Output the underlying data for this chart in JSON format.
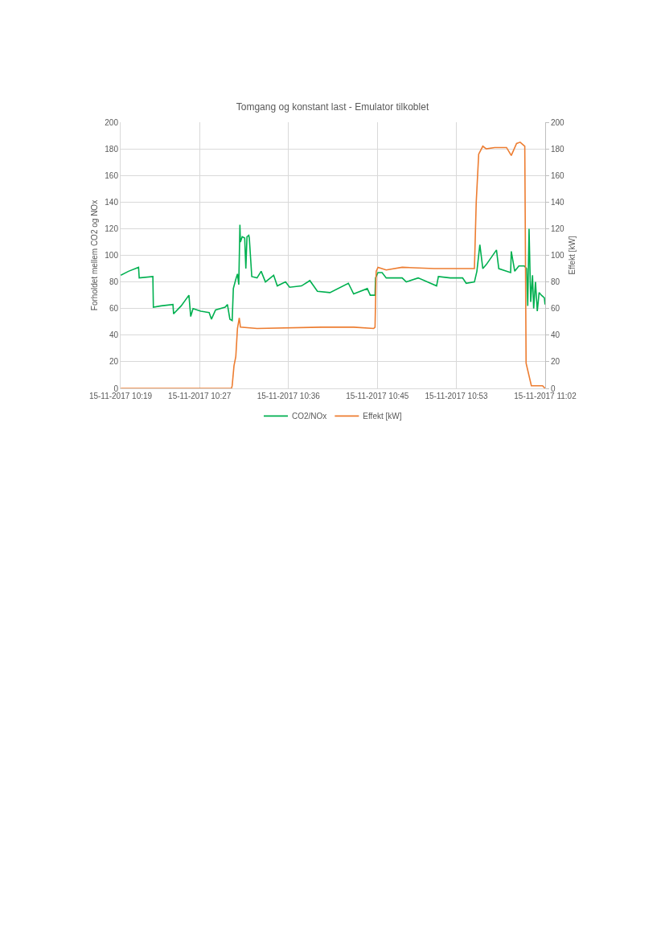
{
  "chart_data": {
    "type": "line",
    "title": "Tomgang og konstant last - Emulator tilkoblet",
    "ylabel": "Forholdet mellem CO2 og NOx",
    "y2label": "Effekt [kW]",
    "xlim": [
      "2017-11-15T10:19",
      "2017-11-15T11:02"
    ],
    "xticks": [
      {
        "value": "2017-11-15T10:19",
        "label": "15-11-2017 10:19"
      },
      {
        "value": "2017-11-15T10:27",
        "label": "15-11-2017 10:27"
      },
      {
        "value": "2017-11-15T10:36",
        "label": "15-11-2017 10:36"
      },
      {
        "value": "2017-11-15T10:45",
        "label": "15-11-2017 10:45"
      },
      {
        "value": "2017-11-15T10:53",
        "label": "15-11-2017 10:53"
      },
      {
        "value": "2017-11-15T11:02",
        "label": "15-11-2017 11:02"
      }
    ],
    "ylim": [
      0,
      200
    ],
    "yticks": [
      0,
      20,
      40,
      60,
      80,
      100,
      120,
      140,
      160,
      180,
      200
    ],
    "y2lim": [
      0,
      200
    ],
    "y2ticks": [
      0,
      20,
      40,
      60,
      80,
      100,
      120,
      140,
      160,
      180,
      200
    ],
    "grid": true,
    "legend": "bottom",
    "marker": "none",
    "line_style": "solid",
    "series": [
      {
        "name": "CO2/NOx",
        "color": "#00b050",
        "x": [
          "2017-11-15T10:19:01",
          "2017-11-15T10:19:48",
          "2017-11-15T10:20:49",
          "2017-11-15T10:20:53",
          "2017-11-15T10:22:16",
          "2017-11-15T10:22:19",
          "2017-11-15T10:23:06",
          "2017-11-15T10:24:18",
          "2017-11-15T10:24:22",
          "2017-11-15T10:25:08",
          "2017-11-15T10:25:55",
          "2017-11-15T10:26:06",
          "2017-11-15T10:26:20",
          "2017-11-15T10:27:07",
          "2017-11-15T10:27:58",
          "2017-11-15T10:28:12",
          "2017-11-15T10:28:37",
          "2017-11-15T10:29:35",
          "2017-11-15T10:29:49",
          "2017-11-15T10:30:04",
          "2017-11-15T10:30:18",
          "2017-11-15T10:30:25",
          "2017-11-15T10:30:40",
          "2017-11-15T10:30:50",
          "2017-11-15T10:30:58",
          "2017-11-15T10:31:05",
          "2017-11-15T10:31:08",
          "2017-11-15T10:31:19",
          "2017-11-15T10:31:34",
          "2017-11-15T10:31:41",
          "2017-11-15T10:31:48",
          "2017-11-15T10:31:59",
          "2017-11-15T10:32:02",
          "2017-11-15T10:32:17",
          "2017-11-15T10:32:49",
          "2017-11-15T10:33:14",
          "2017-11-15T10:33:40",
          "2017-11-15T10:34:30",
          "2017-11-15T10:34:52",
          "2017-11-15T10:35:42",
          "2017-11-15T10:36:07",
          "2017-11-15T10:37:19",
          "2017-11-15T10:38:10",
          "2017-11-15T10:38:56",
          "2017-11-15T10:40:12",
          "2017-11-15T10:42:04",
          "2017-11-15T10:42:36",
          "2017-11-15T10:43:59",
          "2017-11-15T10:44:17",
          "2017-11-15T10:44:46",
          "2017-11-15T10:44:49",
          "2017-11-15T10:45:04",
          "2017-11-15T10:45:29",
          "2017-11-15T10:45:54",
          "2017-11-15T10:47:31",
          "2017-11-15T10:47:56",
          "2017-11-15T10:49:08",
          "2017-11-15T10:51:00",
          "2017-11-15T10:51:11",
          "2017-11-15T10:52:23",
          "2017-11-15T10:53:38",
          "2017-11-15T10:54:00",
          "2017-11-15T10:54:50",
          "2017-11-15T10:55:05",
          "2017-11-15T10:55:23",
          "2017-11-15T10:55:41",
          "2017-11-15T10:56:02",
          "2017-11-15T10:57:04",
          "2017-11-15T10:57:18",
          "2017-11-15T10:58:30",
          "2017-11-15T10:58:34",
          "2017-11-15T10:58:55",
          "2017-11-15T10:59:20",
          "2017-11-15T10:59:53",
          "2017-11-15T11:00:07",
          "2017-11-15T11:00:14",
          "2017-11-15T11:00:22",
          "2017-11-15T11:00:32",
          "2017-11-15T11:00:43",
          "2017-11-15T11:00:50",
          "2017-11-15T11:01:01",
          "2017-11-15T11:01:12",
          "2017-11-15T11:01:23",
          "2017-11-15T11:01:37",
          "2017-11-15T11:01:55",
          "2017-11-15T11:01:59"
        ],
        "values": [
          85,
          88,
          91,
          83,
          84,
          61,
          62,
          63,
          56,
          62,
          70,
          54,
          60,
          58,
          57,
          52,
          59,
          61,
          63,
          52,
          51,
          75,
          82,
          86,
          78,
          123,
          110,
          114,
          113,
          90,
          114,
          115,
          113,
          84,
          83,
          88,
          80,
          85,
          77,
          80,
          76,
          77,
          81,
          73,
          72,
          79,
          71,
          75,
          70,
          70,
          83,
          87,
          87,
          83,
          83,
          80,
          83,
          77,
          84,
          83,
          83,
          79,
          80,
          88,
          108,
          90,
          93,
          104,
          90,
          87,
          103,
          88,
          92,
          92,
          90,
          62,
          120,
          65,
          85,
          60,
          80,
          58,
          72,
          70,
          68,
          63
        ]
      },
      {
        "name": "Effekt [kW]",
        "color": "#ed7d31",
        "axis": "y2",
        "x": [
          "2017-11-15T10:19:01",
          "2017-11-15T10:30:14",
          "2017-11-15T10:30:18",
          "2017-11-15T10:30:29",
          "2017-11-15T10:30:40",
          "2017-11-15T10:30:50",
          "2017-11-15T10:31:01",
          "2017-11-15T10:31:08",
          "2017-11-15T10:32:49",
          "2017-11-15T10:39:22",
          "2017-11-15T10:42:36",
          "2017-11-15T10:44:38",
          "2017-11-15T10:44:46",
          "2017-11-15T10:44:53",
          "2017-11-15T10:45:04",
          "2017-11-15T10:45:54",
          "2017-11-15T10:47:31",
          "2017-11-15T10:50:46",
          "2017-11-15T10:53:38",
          "2017-11-15T10:54:50",
          "2017-11-15T10:55:01",
          "2017-11-15T10:55:16",
          "2017-11-15T10:55:41",
          "2017-11-15T10:56:02",
          "2017-11-15T10:56:53",
          "2017-11-15T10:58:05",
          "2017-11-15T10:58:34",
          "2017-11-15T10:59:06",
          "2017-11-15T10:59:28",
          "2017-11-15T10:59:56",
          "2017-11-15T11:00:04",
          "2017-11-15T11:00:36",
          "2017-11-15T11:01:44",
          "2017-11-15T11:01:59"
        ],
        "values": [
          0,
          0,
          2,
          17,
          24,
          45,
          53,
          46,
          45,
          46,
          46,
          45,
          46,
          88,
          91,
          89,
          91,
          90,
          90,
          90,
          140,
          176,
          182,
          180,
          181,
          181,
          175,
          184,
          185,
          182,
          19,
          2,
          2,
          0
        ]
      }
    ]
  }
}
